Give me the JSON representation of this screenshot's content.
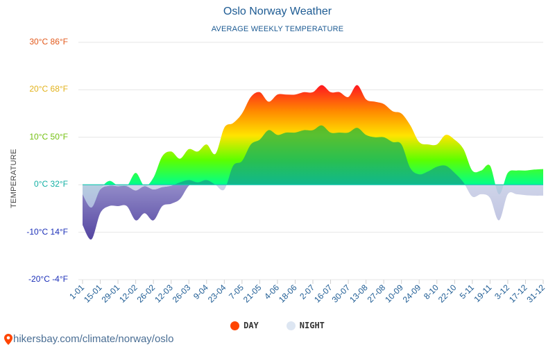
{
  "chart_data": {
    "type": "area",
    "title": "Oslo Norway Weather",
    "subtitle": "AVERAGE WEEKLY TEMPERATURE",
    "ylabel": "TEMPERATURE",
    "ylim": [
      -20,
      30
    ],
    "y_ticks": [
      {
        "value": 30,
        "label": "30°C 86°F",
        "color": "#e2591b"
      },
      {
        "value": 20,
        "label": "20°C 68°F",
        "color": "#e2b21b"
      },
      {
        "value": 10,
        "label": "10°C 50°F",
        "color": "#74c012"
      },
      {
        "value": 0,
        "label": "0°C 32°F",
        "color": "#12b0a4"
      },
      {
        "value": -10,
        "label": "-10°C 14°F",
        "color": "#1b2fb8"
      },
      {
        "value": -20,
        "label": "-20°C -4°F",
        "color": "#1b2fb8"
      }
    ],
    "x_tick_labels": [
      "1-01",
      "15-01",
      "29-01",
      "12-02",
      "26-02",
      "12-03",
      "26-03",
      "9-04",
      "23-04",
      "7-05",
      "21-05",
      "4-06",
      "18-06",
      "2-07",
      "16-07",
      "30-07",
      "13-08",
      "27-08",
      "10-09",
      "24-09",
      "8-10",
      "22-10",
      "5-11",
      "19-11",
      "3-12",
      "17-12",
      "31-12"
    ],
    "weeks": 53,
    "series": [
      {
        "name": "DAY",
        "color": "#ff4500",
        "values": [
          -2.0,
          -4.8,
          -1.0,
          0.8,
          -0.2,
          -0.3,
          2.5,
          -0.3,
          1.5,
          6.0,
          7.0,
          5.5,
          7.5,
          7.0,
          8.5,
          6.5,
          12.0,
          13.0,
          15.0,
          18.5,
          19.5,
          17.5,
          19.0,
          19.0,
          19.0,
          19.5,
          19.5,
          21.0,
          19.5,
          19.5,
          18.5,
          21.0,
          18.0,
          17.5,
          17.0,
          15.5,
          15.0,
          12.5,
          9.0,
          8.5,
          8.5,
          10.5,
          9.5,
          7.5,
          3.0,
          3.0,
          4.0,
          -2.0,
          2.5,
          3.0,
          3.0,
          3.2,
          3.3
        ]
      },
      {
        "name": "NIGHT",
        "color": "#dde6f2",
        "values": [
          -2.0,
          -4.8,
          -1.0,
          -0.2,
          -0.3,
          -0.3,
          -1.2,
          -0.3,
          -1.0,
          -0.5,
          -0.2,
          0.5,
          1.0,
          0.5,
          1.0,
          0.0,
          -1.0,
          4.0,
          5.0,
          8.5,
          9.5,
          11.5,
          10.5,
          11.0,
          11.0,
          11.5,
          11.5,
          12.5,
          11.0,
          11.0,
          11.0,
          12.0,
          10.5,
          10.0,
          10.0,
          9.0,
          8.5,
          3.5,
          2.2,
          2.8,
          3.8,
          4.0,
          2.5,
          0.5,
          -2.5,
          -2.0,
          -2.8,
          -7.5,
          -2.0,
          -2.0,
          -2.2,
          -2.3,
          -2.3
        ]
      },
      {
        "name": "NIGHT_LOW",
        "color": "#5a4aa8",
        "values": [
          -8.5,
          -11.5,
          -6.0,
          -4.5,
          -4.5,
          -4.5,
          -7.5,
          -6.0,
          -7.5,
          -4.5,
          -4.0,
          -3.0,
          -0.2,
          0.5,
          1.0,
          0.0,
          -1.0,
          4.0,
          5.0,
          8.5,
          9.5,
          11.5,
          10.5,
          11.0,
          11.0,
          11.5,
          11.5,
          12.5,
          11.0,
          11.0,
          11.0,
          12.0,
          10.5,
          10.0,
          10.0,
          9.0,
          8.5,
          3.5,
          2.2,
          2.8,
          3.8,
          4.0,
          2.5,
          0.5,
          -2.5,
          -2.0,
          -2.8,
          -7.5,
          -2.0,
          -2.0,
          -2.2,
          -2.3,
          -2.3
        ]
      }
    ],
    "legend": [
      {
        "label": "DAY",
        "color": "#ff4500"
      },
      {
        "label": "NIGHT",
        "color": "#dde6f2"
      }
    ],
    "legend_position": "bottom-center"
  },
  "source": {
    "text": "hikersbay.com/climate/norway/oslo",
    "icon": "location-pin-icon",
    "color": "#ff4500"
  }
}
